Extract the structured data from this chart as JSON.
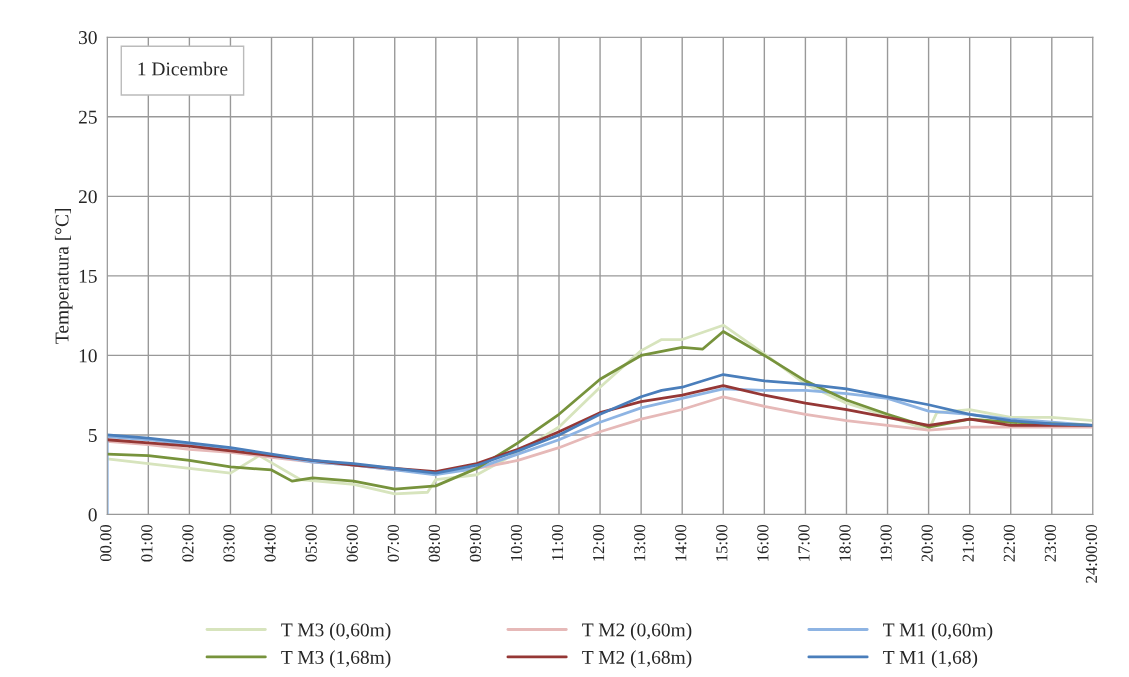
{
  "chart_data": {
    "type": "line",
    "ylabel": "Temperatura [°C]",
    "annotations": [
      "1 Dicembre"
    ],
    "xlim": [
      0,
      24
    ],
    "ylim": [
      0,
      30
    ],
    "yticks": [
      0,
      5,
      10,
      15,
      20,
      25,
      30
    ],
    "xticks": [
      {
        "value": 0,
        "label": "00.00"
      },
      {
        "value": 1,
        "label": "01:00"
      },
      {
        "value": 2,
        "label": "02:00"
      },
      {
        "value": 3,
        "label": "03:00"
      },
      {
        "value": 4,
        "label": "04:00"
      },
      {
        "value": 5,
        "label": "05:00"
      },
      {
        "value": 6,
        "label": "06:00"
      },
      {
        "value": 7,
        "label": "07:00"
      },
      {
        "value": 8,
        "label": "08:00"
      },
      {
        "value": 9,
        "label": "09:00"
      },
      {
        "value": 10,
        "label": "10:00"
      },
      {
        "value": 11,
        "label": "11:00"
      },
      {
        "value": 12,
        "label": "12:00"
      },
      {
        "value": 13,
        "label": "13:00"
      },
      {
        "value": 14,
        "label": "14:00"
      },
      {
        "value": 15,
        "label": "15:00"
      },
      {
        "value": 16,
        "label": "16:00"
      },
      {
        "value": 17,
        "label": "17:00"
      },
      {
        "value": 18,
        "label": "18:00"
      },
      {
        "value": 19,
        "label": "19:00"
      },
      {
        "value": 20,
        "label": "20:00"
      },
      {
        "value": 21,
        "label": "21:00"
      },
      {
        "value": 22,
        "label": "22:00"
      },
      {
        "value": 23,
        "label": "23:00"
      },
      {
        "value": 24,
        "label": "24:00:00"
      }
    ],
    "grid": true,
    "legend": "bottom",
    "marker": "none",
    "line_style": "solid",
    "series": [
      {
        "name": "T M3 (0,60m)",
        "color": "#d7e4bd",
        "x": [
          0,
          1,
          2,
          3,
          3.7,
          4.7,
          6,
          7,
          7.8,
          8,
          9,
          10,
          11,
          12,
          13,
          13.5,
          14,
          15,
          16,
          17,
          18,
          19,
          20,
          20.2,
          21,
          22,
          23,
          24
        ],
        "values": [
          3.5,
          3.2,
          2.9,
          2.6,
          3.7,
          2.2,
          1.9,
          1.3,
          1.4,
          2.2,
          2.5,
          3.9,
          5.5,
          8.0,
          10.3,
          11.0,
          11.0,
          11.9,
          10.1,
          8.2,
          7.0,
          6.2,
          5.3,
          6.4,
          6.6,
          6.1,
          6.1,
          5.9
        ]
      },
      {
        "name": "T M2 (0,60m)",
        "color": "#e6b9b8",
        "x": [
          0,
          1,
          2,
          3,
          4,
          5,
          6,
          7,
          8,
          9,
          10,
          11,
          12,
          13,
          14,
          15,
          16,
          17,
          18,
          19,
          20,
          21,
          22,
          23,
          24
        ],
        "values": [
          4.6,
          4.4,
          4.1,
          3.9,
          3.6,
          3.3,
          3.1,
          2.8,
          2.6,
          2.9,
          3.4,
          4.2,
          5.2,
          6.0,
          6.6,
          7.4,
          6.8,
          6.3,
          5.9,
          5.6,
          5.3,
          5.5,
          5.5,
          5.5,
          5.5
        ]
      },
      {
        "name": "T M1 (0,60m)",
        "color": "#8eb4e3",
        "x": [
          0,
          0,
          1,
          2,
          3,
          4,
          5,
          6,
          7,
          8,
          9,
          10,
          11,
          12,
          13,
          14,
          15,
          16,
          17,
          18,
          19,
          20,
          21,
          22,
          23,
          24
        ],
        "values": [
          0,
          4.9,
          4.7,
          4.4,
          4.1,
          3.7,
          3.3,
          3.1,
          2.8,
          2.5,
          2.9,
          3.8,
          4.7,
          5.8,
          6.7,
          7.3,
          7.9,
          7.8,
          7.8,
          7.6,
          7.3,
          6.5,
          6.3,
          6.0,
          5.8,
          5.6
        ]
      },
      {
        "name": "T M3 (1,68m)",
        "color": "#77933c",
        "x": [
          0,
          1,
          2,
          3,
          4,
          4.5,
          5,
          6,
          7,
          8,
          9,
          10,
          11,
          12,
          13,
          14,
          14.5,
          15,
          16,
          17,
          18,
          19,
          20,
          21,
          22,
          23,
          24
        ],
        "values": [
          3.8,
          3.7,
          3.4,
          3.0,
          2.8,
          2.1,
          2.3,
          2.1,
          1.6,
          1.8,
          2.9,
          4.5,
          6.3,
          8.5,
          10.0,
          10.5,
          10.4,
          11.5,
          10.0,
          8.4,
          7.2,
          6.3,
          5.5,
          6.0,
          5.8,
          5.7,
          5.6
        ]
      },
      {
        "name": "T M2 (1,68m)",
        "color": "#953735",
        "x": [
          0,
          1,
          2,
          3,
          4,
          5,
          6,
          7,
          8,
          9,
          10,
          11,
          12,
          13,
          14,
          15,
          16,
          17,
          18,
          19,
          20,
          21,
          22,
          23,
          24
        ],
        "values": [
          4.7,
          4.5,
          4.3,
          4.0,
          3.7,
          3.4,
          3.1,
          2.9,
          2.7,
          3.2,
          4.1,
          5.2,
          6.4,
          7.1,
          7.5,
          8.1,
          7.5,
          7.0,
          6.6,
          6.1,
          5.6,
          6.0,
          5.6,
          5.6,
          5.6
        ]
      },
      {
        "name": "T M1 (1,68)",
        "color": "#4a7ebb",
        "x": [
          0,
          1,
          2,
          3,
          4,
          5,
          6,
          7,
          8,
          9,
          10,
          11,
          12,
          13,
          13.5,
          14,
          15,
          16,
          17,
          18,
          19,
          20,
          21,
          22,
          23,
          24
        ],
        "values": [
          5.0,
          4.8,
          4.5,
          4.2,
          3.8,
          3.4,
          3.2,
          2.9,
          2.6,
          3.1,
          4.0,
          5.0,
          6.3,
          7.4,
          7.8,
          8.0,
          8.8,
          8.4,
          8.2,
          7.9,
          7.4,
          6.9,
          6.3,
          5.9,
          5.7,
          5.6
        ]
      }
    ]
  }
}
